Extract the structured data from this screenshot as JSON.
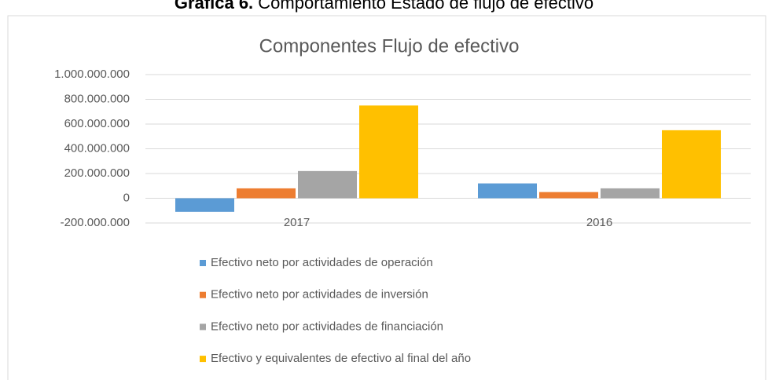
{
  "caption": {
    "label": "Gráfica 6.",
    "text": "Comportamiento Estado de flujo de efectivo"
  },
  "chart_data": {
    "type": "bar",
    "title": "Componentes Flujo de efectivo",
    "categories": [
      "2017",
      "2016"
    ],
    "series": [
      {
        "name": "Efectivo neto por actividades de operación",
        "color": "#5b9bd5",
        "values": [
          -110000000,
          120000000
        ]
      },
      {
        "name": "Efectivo neto por actividades de inversión",
        "color": "#ed7d31",
        "values": [
          80000000,
          50000000
        ]
      },
      {
        "name": "Efectivo neto por actividades de financiación",
        "color": "#a5a5a5",
        "values": [
          220000000,
          80000000
        ]
      },
      {
        "name": "Efectivo y equivalentes de efectivo al final del año",
        "color": "#ffc000",
        "values": [
          750000000,
          550000000
        ]
      }
    ],
    "ylim": [
      -200000000,
      1000000000
    ],
    "yticks": [
      {
        "value": -200000000,
        "label": "-200.000.000"
      },
      0,
      {
        "value": 200000000,
        "label": "200.000.000"
      },
      {
        "value": 400000000,
        "label": "400.000.000"
      },
      {
        "value": 600000000,
        "label": "600.000.000"
      },
      {
        "value": 800000000,
        "label": "800.000.000"
      },
      {
        "value": 1000000000,
        "label": "1.000.000.000"
      }
    ],
    "grid": true,
    "legend": "bottom"
  }
}
